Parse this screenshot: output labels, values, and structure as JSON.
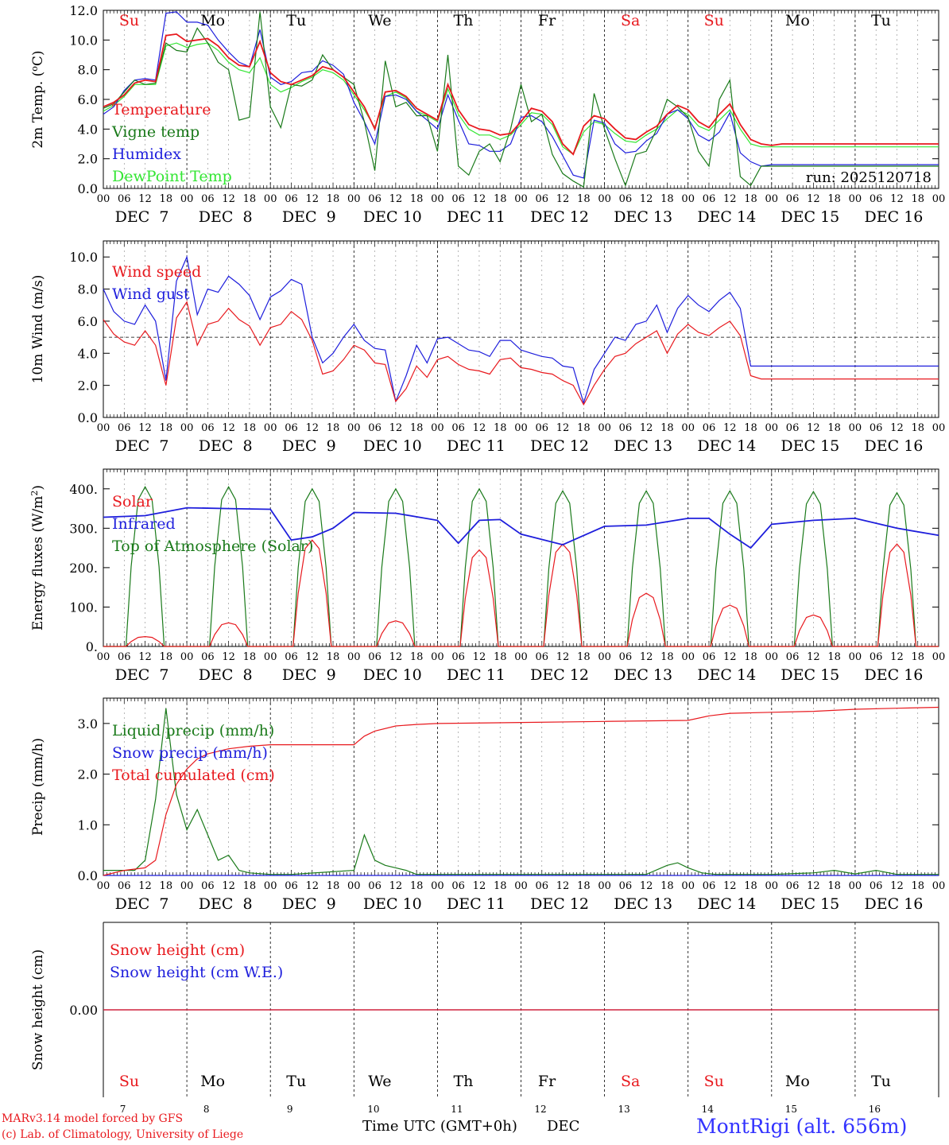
{
  "run_label": "run: 2025120718",
  "top_days": [
    {
      "label": "Su",
      "color": "#e8191e"
    },
    {
      "label": "Mo",
      "color": "#000000"
    },
    {
      "label": "Tu",
      "color": "#000000"
    },
    {
      "label": "We",
      "color": "#000000"
    },
    {
      "label": "Th",
      "color": "#000000"
    },
    {
      "label": "Fr",
      "color": "#000000"
    },
    {
      "label": "Sa",
      "color": "#e8191e"
    },
    {
      "label": "Su",
      "color": "#e8191e"
    },
    {
      "label": "Mo",
      "color": "#000000"
    },
    {
      "label": "Tu",
      "color": "#000000"
    }
  ],
  "date_labels": [
    "DEC  7",
    "DEC  8",
    "DEC  9",
    "DEC 10",
    "DEC 11",
    "DEC 12",
    "DEC 13",
    "DEC 14",
    "DEC 15",
    "DEC 16"
  ],
  "hour_labels": [
    "00",
    "06",
    "12",
    "18"
  ],
  "hour_end": "00",
  "bottom_day_numbers": [
    "7",
    "8",
    "9",
    "10",
    "11",
    "12",
    "13",
    "14",
    "15",
    "16"
  ],
  "footer": {
    "model": "MARv3.14 model forced by GFS",
    "copyright": "(c) Lab. of Climatology, University of Liege",
    "xlabel": "Time UTC (GMT+0h)",
    "month": "DEC",
    "station": "MontRigi (alt. 656m)"
  },
  "colors": {
    "red": "#e8191e",
    "green": "#1a7a1a",
    "blue": "#1e1edc",
    "lightgreen": "#33e633"
  },
  "chart_data": [
    {
      "type": "line",
      "ylabel": "2m Temp. (oC)",
      "ylim": [
        0,
        12
      ],
      "yticks": [
        "0.0",
        "2.0",
        "4.0",
        "6.0",
        "8.0",
        "10.0",
        "12.0"
      ],
      "x_hours": [
        0,
        3,
        6,
        9,
        12,
        15,
        18,
        21,
        24,
        27,
        30,
        33,
        36,
        39,
        42,
        45,
        48,
        51,
        54,
        57,
        60,
        63,
        66,
        69,
        72,
        75,
        78,
        81,
        84,
        87,
        90,
        93,
        96,
        99,
        102,
        105,
        108,
        111,
        114,
        117,
        120,
        123,
        126,
        129,
        132,
        135,
        138,
        141,
        144,
        147,
        150,
        153,
        156,
        159,
        162,
        165,
        168,
        171,
        174,
        177,
        180,
        183,
        186,
        189,
        192,
        195,
        198,
        201,
        204,
        207,
        210,
        213,
        216,
        219,
        222,
        225,
        228,
        231,
        234,
        237,
        240
      ],
      "series": [
        {
          "name": "Temperature",
          "color": "#e8191e",
          "values": [
            5.5,
            5.8,
            6.3,
            7.1,
            7.3,
            7.2,
            10.3,
            10.4,
            9.9,
            10.0,
            10.1,
            9.6,
            8.8,
            8.3,
            8.2,
            9.9,
            7.8,
            7.2,
            7.0,
            7.3,
            7.6,
            8.2,
            8.0,
            7.5,
            6.5,
            5.5,
            4.0,
            6.5,
            6.6,
            6.2,
            5.4,
            5.0,
            4.6,
            7.0,
            5.3,
            4.3,
            4.0,
            3.9,
            3.6,
            3.7,
            4.5,
            5.4,
            5.2,
            4.5,
            3.0,
            2.3,
            4.2,
            4.9,
            4.7,
            4.0,
            3.4,
            3.3,
            3.8,
            4.2,
            5.0,
            5.6,
            5.3,
            4.5,
            4.1,
            5.0,
            5.7,
            4.3,
            3.3,
            3.0,
            2.9,
            3.0,
            3.0,
            3.0,
            3.0,
            3.0,
            3.0,
            3.0,
            3.0,
            3.0,
            3.0,
            3.0,
            3.0,
            3.0,
            3.0,
            3.0,
            3.0
          ]
        },
        {
          "name": "Vigne temp",
          "color": "#1a7a1a",
          "values": [
            5.4,
            5.7,
            6.5,
            7.3,
            7.0,
            7.1,
            9.8,
            9.3,
            9.2,
            10.8,
            9.8,
            8.5,
            8.0,
            4.6,
            4.8,
            11.9,
            5.5,
            4.1,
            7.0,
            6.9,
            7.3,
            9.0,
            8.0,
            7.5,
            7.0,
            4.5,
            1.2,
            8.6,
            5.5,
            5.8,
            4.9,
            4.9,
            2.5,
            9.0,
            1.5,
            0.9,
            2.5,
            3.0,
            1.8,
            4.0,
            7.0,
            4.5,
            5.0,
            2.3,
            1.0,
            0.5,
            0.1,
            6.4,
            4.0,
            2.0,
            0.2,
            2.3,
            2.5,
            4.0,
            6.0,
            5.5,
            4.8,
            2.5,
            1.5,
            6.0,
            7.3,
            0.8,
            0.2,
            1.5,
            1.5,
            1.5,
            1.5,
            1.5,
            1.5,
            1.5,
            1.5,
            1.5,
            1.5,
            1.5,
            1.5,
            1.5,
            1.5,
            1.5,
            1.5,
            1.5,
            1.5
          ]
        },
        {
          "name": "Humidex",
          "color": "#1e1edc",
          "values": [
            5.0,
            5.5,
            6.6,
            7.3,
            7.4,
            7.3,
            11.8,
            11.9,
            11.2,
            11.2,
            11.0,
            10.0,
            9.2,
            8.5,
            8.2,
            10.7,
            7.5,
            7.0,
            7.2,
            7.8,
            7.9,
            8.6,
            8.3,
            7.7,
            5.8,
            4.5,
            3.0,
            6.2,
            6.3,
            6.0,
            5.2,
            4.6,
            4.0,
            6.3,
            4.6,
            3.0,
            2.9,
            2.5,
            2.5,
            3.0,
            4.8,
            4.9,
            4.5,
            3.5,
            2.2,
            0.9,
            0.7,
            4.6,
            4.4,
            3.0,
            2.4,
            2.5,
            3.2,
            3.7,
            5.0,
            5.3,
            4.7,
            3.6,
            3.2,
            3.8,
            5.1,
            2.4,
            1.8,
            1.5,
            1.6,
            1.6,
            1.6,
            1.6,
            1.6,
            1.6,
            1.6,
            1.6,
            1.6,
            1.6,
            1.6,
            1.6,
            1.6,
            1.6,
            1.6,
            1.6,
            1.6
          ]
        },
        {
          "name": "DewPoint Temp",
          "color": "#33e633",
          "values": [
            5.2,
            5.6,
            6.2,
            7.0,
            7.0,
            7.0,
            9.6,
            9.8,
            9.5,
            9.7,
            9.8,
            9.3,
            8.5,
            8.0,
            7.8,
            8.8,
            7.0,
            6.5,
            6.8,
            7.2,
            7.5,
            8.0,
            7.8,
            7.3,
            6.3,
            5.3,
            4.1,
            6.2,
            6.5,
            6.1,
            5.2,
            4.9,
            4.5,
            6.7,
            5.0,
            4.0,
            3.6,
            3.6,
            3.3,
            3.6,
            4.3,
            5.1,
            5.0,
            4.3,
            2.8,
            2.3,
            3.8,
            4.5,
            4.3,
            3.7,
            3.2,
            3.1,
            3.6,
            4.0,
            4.7,
            5.3,
            5.0,
            4.2,
            3.9,
            4.6,
            5.3,
            4.0,
            3.0,
            2.8,
            2.8,
            2.8,
            2.8,
            2.8,
            2.8,
            2.8,
            2.8,
            2.8,
            2.8,
            2.8,
            2.8,
            2.8,
            2.8,
            2.8,
            2.8,
            2.8,
            2.8
          ]
        }
      ]
    },
    {
      "type": "line",
      "ylabel": "10m Wind (m/s)",
      "ylim": [
        0,
        11
      ],
      "yticks": [
        "0.0",
        "2.0",
        "4.0",
        "6.0",
        "8.0",
        "10.0"
      ],
      "hline": 5.0,
      "x_hours": [
        0,
        3,
        6,
        9,
        12,
        15,
        18,
        21,
        24,
        27,
        30,
        33,
        36,
        39,
        42,
        45,
        48,
        51,
        54,
        57,
        60,
        63,
        66,
        69,
        72,
        75,
        78,
        81,
        84,
        87,
        90,
        93,
        96,
        99,
        102,
        105,
        108,
        111,
        114,
        117,
        120,
        123,
        126,
        129,
        132,
        135,
        138,
        141,
        144,
        147,
        150,
        153,
        156,
        159,
        162,
        165,
        168,
        171,
        174,
        177,
        180,
        183,
        186,
        189,
        192,
        195,
        198,
        201,
        204,
        207,
        210,
        213,
        216,
        219,
        222,
        225,
        228,
        231,
        234,
        237,
        240
      ],
      "series": [
        {
          "name": "Wind speed",
          "color": "#e8191e",
          "values": [
            6.1,
            5.2,
            4.7,
            4.5,
            5.4,
            4.5,
            2.0,
            6.2,
            7.2,
            4.5,
            5.8,
            6.0,
            6.8,
            6.1,
            5.7,
            4.5,
            5.6,
            5.8,
            6.6,
            6.1,
            4.8,
            2.7,
            2.9,
            3.6,
            4.5,
            4.2,
            3.4,
            3.3,
            1.0,
            1.8,
            3.2,
            2.5,
            3.6,
            3.8,
            3.3,
            3.0,
            2.9,
            2.7,
            3.6,
            3.7,
            3.1,
            3.0,
            2.8,
            2.7,
            2.3,
            2.0,
            0.8,
            2.0,
            3.0,
            3.8,
            4.0,
            4.6,
            5.0,
            5.4,
            4.0,
            5.2,
            5.8,
            5.3,
            5.1,
            5.6,
            6.0,
            5.1,
            2.6,
            2.4,
            2.4,
            2.4,
            2.4,
            2.4,
            2.4,
            2.4,
            2.4,
            2.4,
            2.4,
            2.4,
            2.4,
            2.4,
            2.4,
            2.4,
            2.4,
            2.4,
            2.4
          ]
        },
        {
          "name": "Wind gust",
          "color": "#1e1edc",
          "values": [
            8.0,
            6.6,
            6.0,
            5.8,
            7.0,
            6.0,
            2.3,
            8.5,
            10.0,
            6.4,
            8.0,
            7.8,
            8.8,
            8.3,
            7.6,
            6.1,
            7.5,
            7.9,
            8.6,
            8.3,
            5.0,
            3.4,
            4.0,
            5.0,
            5.8,
            4.8,
            4.3,
            4.2,
            1.0,
            2.6,
            4.5,
            3.4,
            4.9,
            5.0,
            4.6,
            4.2,
            4.1,
            3.8,
            4.8,
            4.8,
            4.2,
            4.0,
            3.8,
            3.7,
            3.2,
            3.1,
            0.9,
            3.0,
            4.0,
            5.0,
            4.8,
            5.8,
            6.0,
            7.0,
            5.3,
            6.8,
            7.6,
            7.0,
            6.6,
            7.3,
            7.8,
            6.8,
            3.2,
            3.2,
            3.2,
            3.2,
            3.2,
            3.2,
            3.2,
            3.2,
            3.2,
            3.2,
            3.2,
            3.2,
            3.2,
            3.2,
            3.2,
            3.2,
            3.2,
            3.2,
            3.2
          ]
        }
      ]
    },
    {
      "type": "line",
      "ylabel": "Energy fluxes (W/m2)",
      "ylim": [
        0,
        450
      ],
      "yticks": [
        "0.",
        "100.",
        "200.",
        "300.",
        "400."
      ],
      "series": [
        {
          "name": "Solar",
          "color": "#e8191e",
          "peaks": [
            25,
            60,
            270,
            65,
            245,
            260,
            135,
            105,
            80,
            260
          ]
        },
        {
          "name": "Infrared",
          "color": "#1e1edc",
          "x_hours": [
            0,
            12,
            24,
            36,
            48,
            54,
            60,
            66,
            72,
            84,
            96,
            102,
            108,
            114,
            120,
            132,
            144,
            156,
            168,
            174,
            180,
            186,
            192,
            204,
            216,
            228,
            240
          ],
          "values": [
            328,
            332,
            352,
            350,
            348,
            270,
            278,
            300,
            340,
            338,
            320,
            262,
            320,
            322,
            285,
            258,
            305,
            308,
            325,
            325,
            285,
            250,
            310,
            320,
            325,
            300,
            282
          ]
        },
        {
          "name": "Top of Atmosphere (Solar)",
          "color": "#1a7a1a",
          "peaks": [
            405,
            405,
            400,
            400,
            400,
            395,
            395,
            395,
            393,
            390
          ]
        }
      ]
    },
    {
      "type": "line",
      "ylabel": "Precip (mm/h)",
      "ylim": [
        0,
        3.5
      ],
      "yticks": [
        "0.0",
        "1.0",
        "2.0",
        "3.0"
      ],
      "series": [
        {
          "name": "Liquid precip (mm/h)",
          "color": "#1a7a1a",
          "x_hours": [
            0,
            6,
            9,
            12,
            15,
            18,
            21,
            24,
            27,
            30,
            33,
            36,
            39,
            42,
            48,
            54,
            72,
            75,
            78,
            81,
            84,
            87,
            90,
            96,
            102,
            108,
            120,
            132,
            144,
            156,
            162,
            165,
            168,
            172,
            176,
            192,
            204,
            210,
            216,
            222,
            228,
            240
          ],
          "values": [
            0.1,
            0.1,
            0.1,
            0.3,
            1.5,
            3.3,
            1.6,
            0.9,
            1.3,
            0.8,
            0.3,
            0.4,
            0.1,
            0.05,
            0.02,
            0.02,
            0.1,
            0.8,
            0.3,
            0.2,
            0.15,
            0.1,
            0.02,
            0.02,
            0.02,
            0.02,
            0.02,
            0.02,
            0.02,
            0.02,
            0.2,
            0.25,
            0.15,
            0.05,
            0.02,
            0.02,
            0.05,
            0.1,
            0.03,
            0.1,
            0.02,
            0.02
          ]
        },
        {
          "name": "Snow precip (mm/h)",
          "color": "#1e1edc",
          "x_hours": [
            0,
            240
          ],
          "values": [
            0,
            0
          ]
        },
        {
          "name": "Total cumulated (cm)",
          "color": "#e8191e",
          "x_hours": [
            0,
            6,
            12,
            15,
            18,
            21,
            24,
            27,
            30,
            36,
            42,
            48,
            54,
            60,
            66,
            72,
            75,
            78,
            84,
            90,
            96,
            120,
            144,
            168,
            174,
            180,
            192,
            204,
            216,
            228,
            240
          ],
          "values": [
            0.0,
            0.1,
            0.15,
            0.3,
            1.2,
            1.8,
            2.1,
            2.3,
            2.4,
            2.5,
            2.55,
            2.58,
            2.58,
            2.58,
            2.58,
            2.58,
            2.75,
            2.85,
            2.95,
            2.98,
            3.0,
            3.02,
            3.04,
            3.06,
            3.15,
            3.2,
            3.22,
            3.24,
            3.28,
            3.3,
            3.32
          ]
        }
      ]
    },
    {
      "type": "line",
      "ylabel": "Snow height (cm)",
      "ytick": "0.00",
      "series": [
        {
          "name": "Snow height (cm)",
          "color": "#e8191e",
          "x_hours": [
            0,
            240
          ],
          "values": [
            0,
            0
          ]
        },
        {
          "name": "Snow height (cm W.E.)",
          "color": "#1e1edc",
          "x_hours": [
            0,
            240
          ],
          "values": [
            0,
            0
          ]
        }
      ]
    }
  ]
}
